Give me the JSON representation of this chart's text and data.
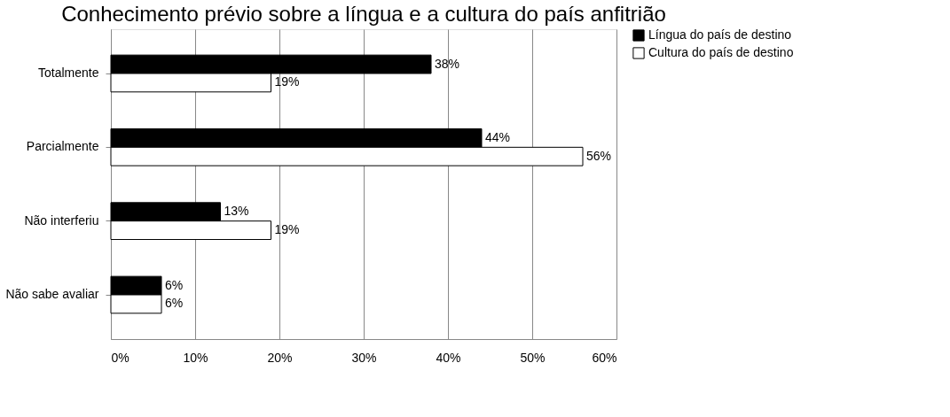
{
  "chart_data": {
    "type": "bar",
    "orientation": "horizontal",
    "title": "Conhecimento prévio sobre a língua e a cultura do país anfitrião",
    "categories": [
      "Totalmente",
      "Parcialmente",
      "Não interferiu",
      "Não sabe avaliar"
    ],
    "series": [
      {
        "name": "Língua do país de destino",
        "color": "#000000",
        "values": [
          38,
          44,
          13,
          6
        ],
        "value_labels": [
          "38%",
          "44%",
          "13%",
          "6%"
        ]
      },
      {
        "name": "Cultura do país de destino",
        "color": "#ffffff",
        "values": [
          19,
          56,
          19,
          6
        ],
        "value_labels": [
          "19%",
          "56%",
          "19%",
          "6%"
        ]
      }
    ],
    "xlim": [
      0,
      60
    ],
    "xticks": [
      {
        "value": 0,
        "label": "0%"
      },
      {
        "value": 10,
        "label": "10%"
      },
      {
        "value": 20,
        "label": "20%"
      },
      {
        "value": 30,
        "label": "30%"
      },
      {
        "value": 40,
        "label": "40%"
      },
      {
        "value": 50,
        "label": "50%"
      },
      {
        "value": 60,
        "label": "60%"
      }
    ],
    "grid": "x",
    "legend": "right"
  }
}
